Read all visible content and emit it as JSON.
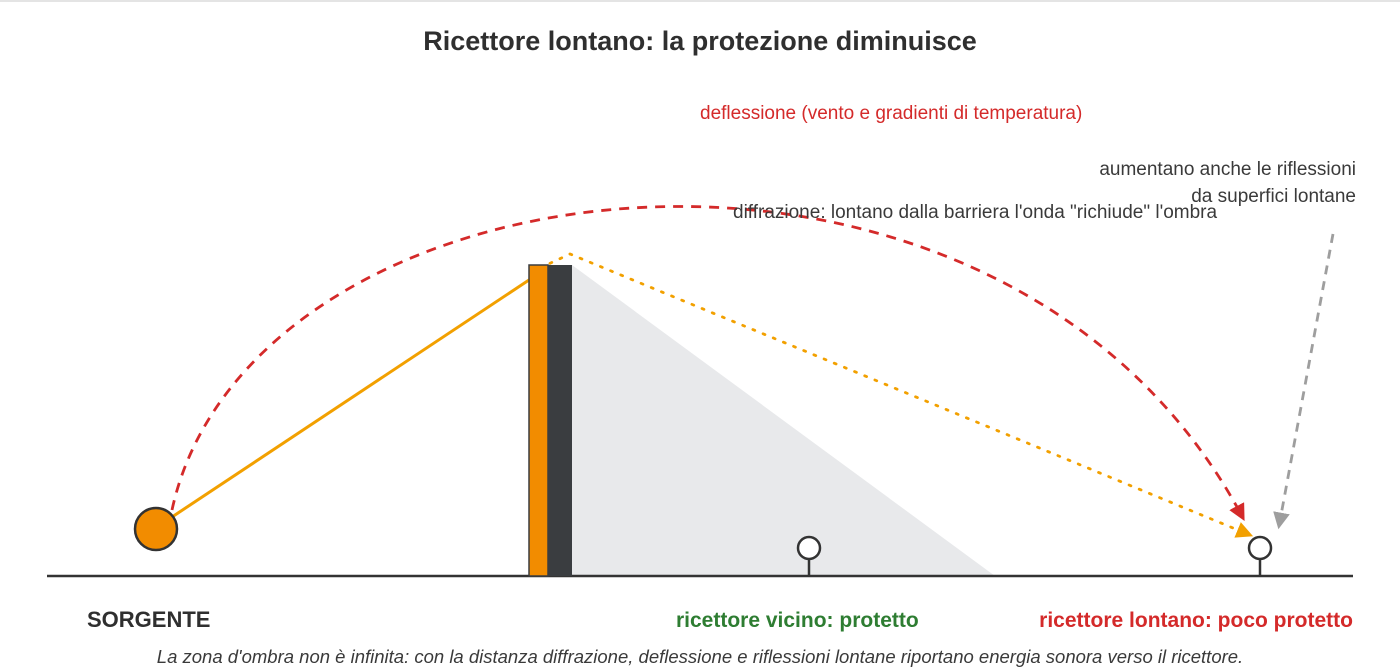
{
  "title": "Ricettore lontano: la protezione diminuisce",
  "annotations": {
    "deflection": "deflessione (vento e gradienti di temperatura)",
    "reflections_line1": "aumentano anche le riflessioni",
    "reflections_line2": "da superfici lontane",
    "diffraction": "diffrazione: lontano dalla barriera l'onda \"richiude\" l'ombra"
  },
  "labels": {
    "source": "SORGENTE",
    "near_receiver": "ricettore vicino: protetto",
    "far_receiver": "ricettore lontano: poco protetto"
  },
  "caption": "La zona d'ombra non è infinita: con la distanza diffrazione, deflessione e riflessioni lontane riportano energia sonora verso il ricettore.",
  "colors": {
    "source": "#f28c00",
    "barrier_front": "#f28c00",
    "barrier_back": "#3a3d40",
    "shadow_zone": "#e8e9eb",
    "deflection_path": "#d42a2a",
    "diffraction_path": "#f2a000",
    "reflection_path": "#9e9e9e",
    "near_label": "#2e7d32",
    "far_label": "#d42a2a"
  }
}
